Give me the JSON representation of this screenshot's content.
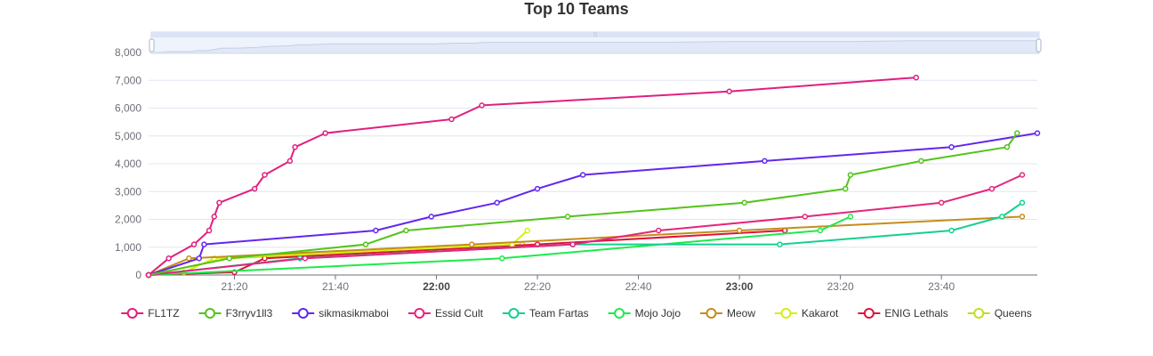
{
  "chart_data": {
    "type": "line",
    "title": "Top 10 Teams",
    "xlabel": "",
    "ylabel": "",
    "ylim": [
      0,
      8000
    ],
    "yticks": [
      0,
      1000,
      2000,
      3000,
      4000,
      5000,
      6000,
      7000,
      8000
    ],
    "ytick_labels": [
      "0",
      "1,000",
      "2,000",
      "3,000",
      "4,000",
      "5,000",
      "6,000",
      "7,000",
      "8,000"
    ],
    "xlim": [
      "21:03",
      "23:59"
    ],
    "xticks": [
      {
        "t": "21:20",
        "label": "21:20",
        "bold": false
      },
      {
        "t": "21:40",
        "label": "21:40",
        "bold": false
      },
      {
        "t": "22:00",
        "label": "22:00",
        "bold": true
      },
      {
        "t": "22:20",
        "label": "22:20",
        "bold": false
      },
      {
        "t": "22:40",
        "label": "22:40",
        "bold": false
      },
      {
        "t": "23:00",
        "label": "23:00",
        "bold": true
      },
      {
        "t": "23:20",
        "label": "23:20",
        "bold": false
      },
      {
        "t": "23:40",
        "label": "23:40",
        "bold": false
      }
    ],
    "grid": true,
    "legend_position": "bottom",
    "datazoom": true,
    "series": [
      {
        "name": "FL1TZ",
        "color": "#e01f7f",
        "points": [
          [
            "21:03",
            0
          ],
          [
            "21:07",
            600
          ],
          [
            "21:12",
            1100
          ],
          [
            "21:15",
            1600
          ],
          [
            "21:16",
            2100
          ],
          [
            "21:17",
            2600
          ],
          [
            "21:24",
            3100
          ],
          [
            "21:26",
            3600
          ],
          [
            "21:31",
            4100
          ],
          [
            "21:32",
            4600
          ],
          [
            "21:38",
            5100
          ],
          [
            "22:03",
            5600
          ],
          [
            "22:09",
            6100
          ],
          [
            "22:58",
            6600
          ],
          [
            "23:35",
            7100
          ]
        ]
      },
      {
        "name": "F3rryv1ll3",
        "color": "#52c41a",
        "points": [
          [
            "21:03",
            0
          ],
          [
            "21:19",
            600
          ],
          [
            "21:46",
            1100
          ],
          [
            "21:54",
            1600
          ],
          [
            "22:26",
            2100
          ],
          [
            "23:01",
            2600
          ],
          [
            "23:21",
            3100
          ],
          [
            "23:22",
            3600
          ],
          [
            "23:36",
            4100
          ],
          [
            "23:53",
            4600
          ],
          [
            "23:55",
            5100
          ]
        ]
      },
      {
        "name": "sikmasikmaboi",
        "color": "#6326ed",
        "points": [
          [
            "21:03",
            0
          ],
          [
            "21:13",
            600
          ],
          [
            "21:14",
            1100
          ],
          [
            "21:48",
            1600
          ],
          [
            "21:59",
            2100
          ],
          [
            "22:12",
            2600
          ],
          [
            "22:20",
            3100
          ],
          [
            "22:29",
            3600
          ],
          [
            "23:05",
            4100
          ],
          [
            "23:42",
            4600
          ],
          [
            "23:59",
            5100
          ]
        ]
      },
      {
        "name": "Essid Cult",
        "color": "#e4267c",
        "points": [
          [
            "21:03",
            0
          ],
          [
            "21:34",
            600
          ],
          [
            "22:27",
            1100
          ],
          [
            "22:44",
            1600
          ],
          [
            "23:13",
            2100
          ],
          [
            "23:40",
            2600
          ],
          [
            "23:50",
            3100
          ],
          [
            "23:56",
            3600
          ]
        ]
      },
      {
        "name": "Team Fartas",
        "color": "#12d18e",
        "points": [
          [
            "21:03",
            0
          ],
          [
            "21:33",
            600
          ],
          [
            "22:27",
            1100
          ],
          [
            "23:08",
            1100
          ],
          [
            "23:42",
            1600
          ],
          [
            "23:52",
            2100
          ],
          [
            "23:56",
            2600
          ]
        ]
      },
      {
        "name": "Mojo Jojo",
        "color": "#1eea4a",
        "points": [
          [
            "21:03",
            0
          ],
          [
            "22:13",
            600
          ],
          [
            "23:16",
            1600
          ],
          [
            "23:22",
            2100
          ]
        ]
      },
      {
        "name": "Meow",
        "color": "#c58d1a",
        "points": [
          [
            "21:03",
            0
          ],
          [
            "21:11",
            600
          ],
          [
            "22:07",
            1100
          ],
          [
            "23:00",
            1600
          ],
          [
            "23:56",
            2100
          ]
        ]
      },
      {
        "name": "Kakarot",
        "color": "#d6ee13",
        "points": [
          [
            "21:03",
            0
          ],
          [
            "21:10",
            100
          ],
          [
            "21:16",
            600
          ],
          [
            "22:15",
            1100
          ],
          [
            "22:18",
            1600
          ]
        ]
      },
      {
        "name": "ENIG Lethals",
        "color": "#dc143c",
        "points": [
          [
            "21:03",
            0
          ],
          [
            "21:20",
            100
          ],
          [
            "21:26",
            600
          ],
          [
            "22:20",
            1100
          ],
          [
            "23:09",
            1600
          ]
        ]
      },
      {
        "name": "Queens",
        "color": "#c2dc28",
        "points": [
          [
            "21:03",
            0
          ],
          [
            "21:19",
            600
          ],
          [
            "22:17",
            1100
          ]
        ]
      }
    ]
  }
}
